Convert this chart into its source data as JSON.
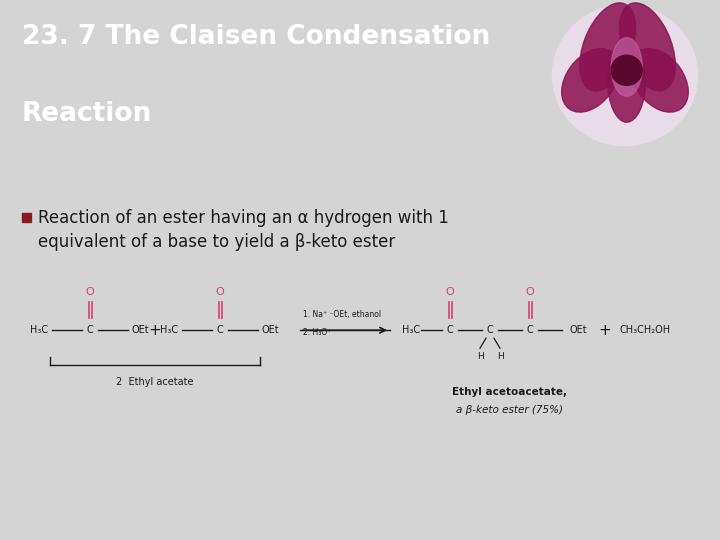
{
  "title_line1": "23. 7 The Claisen Condensation",
  "title_line2": "Reaction",
  "title_bg_color": "#636672",
  "title_text_color": "#ffffff",
  "body_bg_color": "#d4d4d4",
  "bullet_color": "#8b1a1a",
  "bullet_text_line1": "Reaction of an ester having an α hydrogen with 1",
  "bullet_text_line2": "equivalent of a base to yield a β-keto ester",
  "bullet_text_color": "#1a1a1a",
  "pink_color": "#d94070",
  "black_color": "#1a1a1a",
  "gray_color": "#555555",
  "title_fontsize": 19,
  "bullet_fontsize": 12,
  "chem_fontsize": 7.0
}
